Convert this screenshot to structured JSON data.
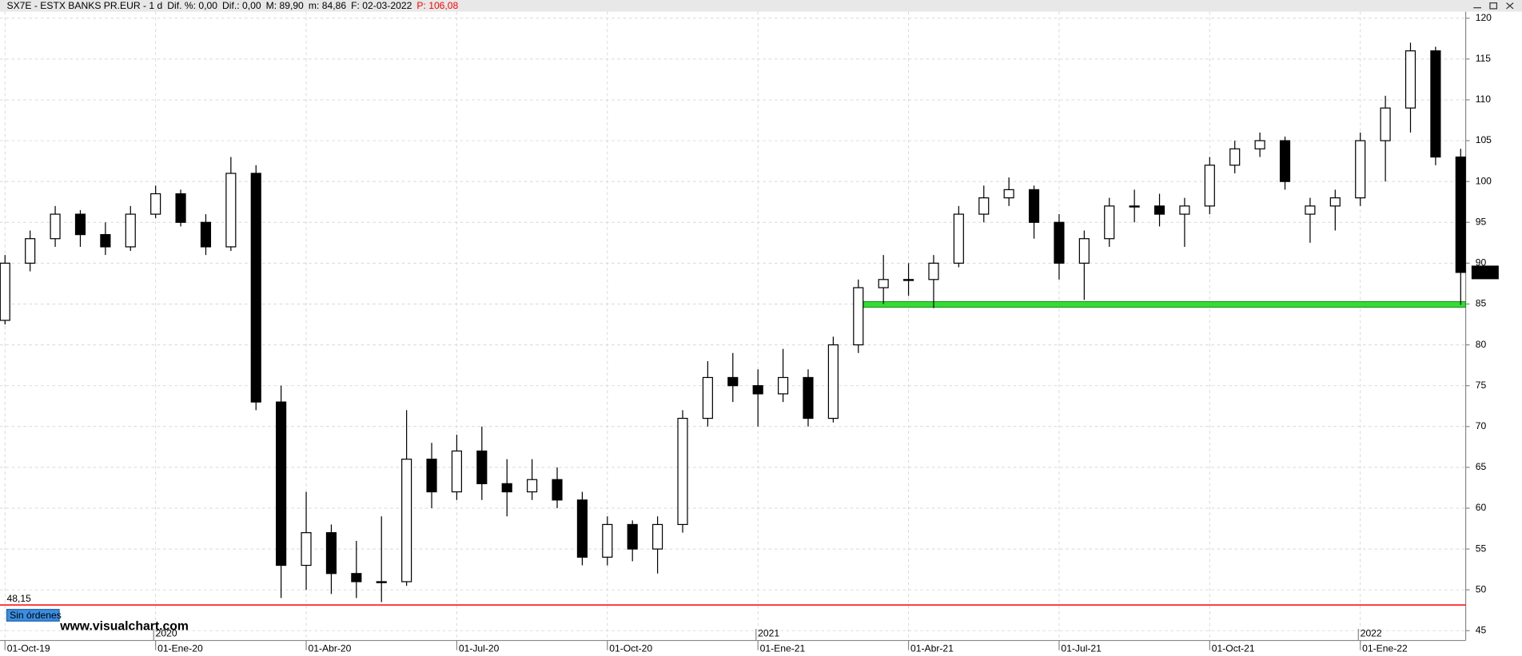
{
  "chart_data": {
    "type": "candlestick",
    "header": {
      "title": "SX7E - ESTX BANKS PR.EUR - 1 d",
      "fields": [
        "Dif. %: 0,00",
        "Dif.: 0,00",
        "M: 89,90",
        "m: 84,86",
        "F: 02-03-2022"
      ],
      "price": "P: 106,08"
    },
    "open": [
      83,
      90,
      93,
      96,
      93.5,
      92,
      96,
      98.5,
      95,
      92,
      101,
      73,
      53,
      57,
      52,
      51,
      51,
      66,
      62,
      67,
      63,
      62,
      63.5,
      61,
      54,
      58,
      55,
      58,
      71,
      76,
      75,
      74,
      76,
      71,
      80,
      87,
      88,
      88,
      90,
      96,
      98,
      99,
      95,
      90,
      93,
      97,
      97,
      96,
      97,
      102,
      104,
      105,
      96,
      97,
      98,
      105,
      109,
      116,
      103
    ],
    "high": [
      91,
      94,
      97,
      96.5,
      95,
      97,
      99.5,
      99,
      96,
      103,
      102,
      75,
      62,
      58,
      56,
      59,
      72,
      68,
      69,
      70,
      66,
      66,
      65,
      62,
      59,
      58.5,
      59,
      72,
      78,
      79,
      77,
      79.5,
      77,
      81,
      88,
      91,
      90,
      91,
      97,
      99.5,
      100.5,
      99.5,
      96,
      94,
      98,
      99,
      98.5,
      98,
      103,
      105,
      106,
      105.5,
      98,
      99,
      106,
      110.5,
      117,
      116.5,
      104
    ],
    "low": [
      82.5,
      89,
      92,
      92,
      91,
      91.5,
      95.5,
      94.5,
      91,
      91.5,
      72,
      49,
      50,
      49.5,
      49,
      48.5,
      50.5,
      60,
      61,
      61,
      59,
      61,
      60,
      53,
      53,
      53.5,
      52,
      57,
      70,
      73,
      70,
      73,
      70,
      70.5,
      79,
      85,
      86,
      84.5,
      89.5,
      95,
      97,
      93,
      88,
      85.5,
      92,
      95,
      94.5,
      92,
      96,
      101,
      103,
      99,
      92.5,
      94,
      97,
      100,
      106,
      102,
      84.9
    ],
    "close": [
      90,
      93,
      96,
      93.5,
      92,
      96,
      98.5,
      95,
      92,
      101,
      73,
      53,
      57,
      52,
      51,
      51,
      66,
      62,
      67,
      63,
      62,
      63.5,
      61,
      54,
      58,
      55,
      58,
      71,
      76,
      75,
      74,
      76,
      71,
      80,
      87,
      88,
      88,
      90,
      96,
      98,
      99,
      95,
      90,
      93,
      97,
      97,
      96,
      97,
      102,
      104,
      105,
      100,
      97,
      98,
      105,
      109,
      116,
      103,
      88.87
    ],
    "last_price_label": "88,87",
    "xlim": [
      -0.2,
      58.2
    ],
    "xticks": [
      {
        "value": 0,
        "label": "01-Oct-19"
      },
      {
        "value": 6,
        "label": "01-Ene-20"
      },
      {
        "value": 12,
        "label": "01-Abr-20"
      },
      {
        "value": 18,
        "label": "01-Jul-20"
      },
      {
        "value": 24,
        "label": "01-Oct-20"
      },
      {
        "value": 30,
        "label": "01-Ene-21"
      },
      {
        "value": 36,
        "label": "01-Abr-21"
      },
      {
        "value": 42,
        "label": "01-Jul-21"
      },
      {
        "value": 48,
        "label": "01-Oct-21"
      },
      {
        "value": 54,
        "label": "01-Ene-22"
      }
    ],
    "year_ticks": [
      {
        "value": 6,
        "label": "2020"
      },
      {
        "value": 30,
        "label": "2021"
      },
      {
        "value": 54,
        "label": "2022"
      }
    ],
    "ylim": [
      43.8,
      120.8
    ],
    "yticks": [
      45,
      50,
      55,
      60,
      65,
      70,
      75,
      80,
      85,
      90,
      95,
      100,
      105,
      110,
      115,
      120
    ],
    "grid": true,
    "reference_line": {
      "value": 48.15,
      "label": "48,15",
      "color": "#ff0000"
    },
    "support_zone": {
      "low": 84.6,
      "high": 85.3,
      "start": 34.2,
      "color": "#33dd33"
    },
    "up_color": "#ffffff",
    "down_color": "#000000",
    "orders_button": "Sin órdenes",
    "watermark": "www.visualchart.com"
  }
}
